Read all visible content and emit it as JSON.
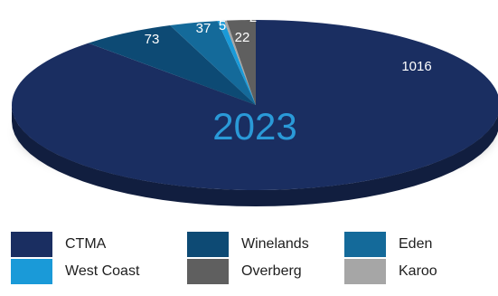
{
  "chart_data": {
    "type": "pie",
    "title": "2023",
    "categories": [
      "CTMA",
      "Winelands",
      "Eden",
      "West Coast",
      "Overberg",
      "Karoo"
    ],
    "values": [
      1016,
      73,
      37,
      5,
      22,
      2
    ],
    "colors": [
      "#1a2e61",
      "#0d4a74",
      "#146a9a",
      "#1a9ad8",
      "#5f5f5f",
      "#a6a6a6"
    ],
    "legend_position": "bottom"
  }
}
